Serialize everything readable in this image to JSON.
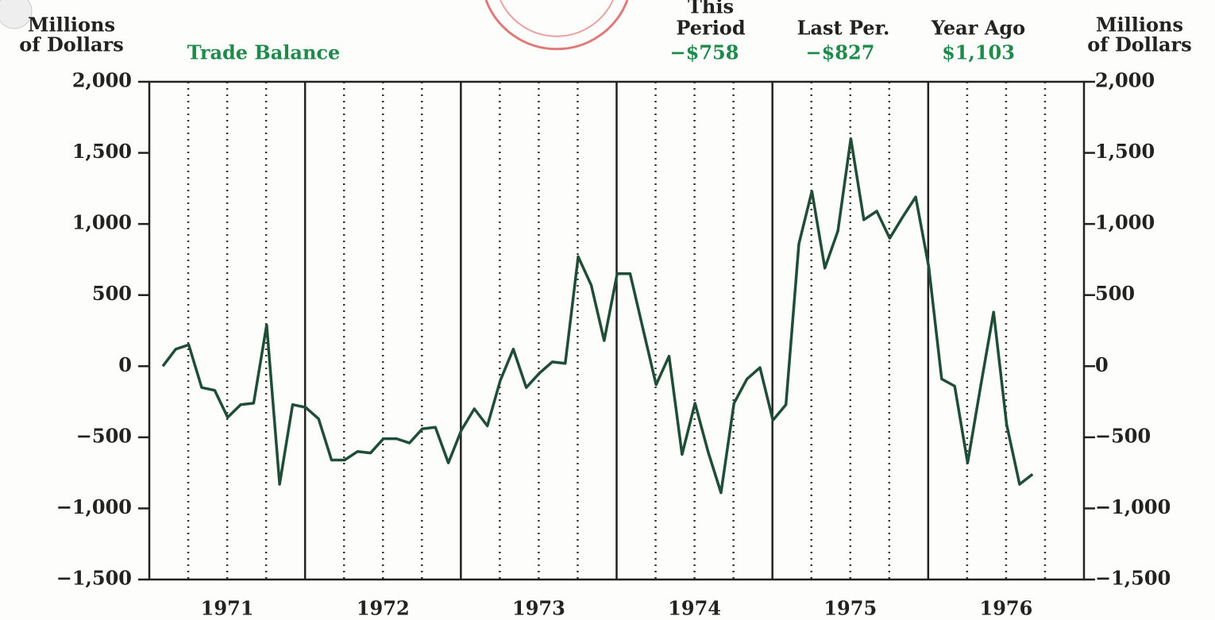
{
  "chart_data": {
    "type": "line",
    "title": "Trade Balance",
    "y_axis_label_left": [
      "Millions",
      "of Dollars"
    ],
    "y_axis_label_right": [
      "Millions",
      "of Dollars"
    ],
    "summary": {
      "headers": [
        [
          "This",
          "Period"
        ],
        [
          "Last Per."
        ],
        [
          "Year Ago"
        ]
      ],
      "values": [
        {
          "value": -758,
          "label": "−$758"
        },
        {
          "value": -827,
          "label": "−$827"
        },
        {
          "value": 1103,
          "label": "$1,103"
        }
      ]
    },
    "year_labels": [
      "1971",
      "1972",
      "1973",
      "1974",
      "1975",
      "1976"
    ],
    "categories": [
      null,
      null,
      null,
      null,
      null,
      null,
      null,
      null,
      null,
      null,
      null,
      null,
      null,
      null,
      null,
      null,
      null,
      null,
      null,
      null,
      null,
      null,
      null,
      null,
      null,
      null,
      null,
      null,
      null,
      null,
      null,
      null,
      null,
      null,
      null,
      null,
      null,
      null,
      null,
      null,
      null,
      null,
      null,
      null,
      null,
      null,
      null,
      null,
      null,
      null,
      null,
      null,
      null,
      null,
      null,
      null,
      null,
      null,
      null,
      null,
      null,
      null,
      null,
      null,
      null,
      null,
      null,
      null
    ],
    "series": [
      {
        "name": "Trade Balance",
        "color": "#1f4d38",
        "values": [
          0,
          120,
          150,
          -150,
          -170,
          -360,
          -270,
          -260,
          290,
          -830,
          -270,
          -290,
          -370,
          -660,
          -660,
          -600,
          -610,
          -510,
          -510,
          -540,
          -440,
          -430,
          -680,
          -450,
          -300,
          -420,
          -100,
          120,
          -150,
          -50,
          30,
          20,
          770,
          570,
          180,
          650,
          650,
          260,
          -130,
          70,
          -620,
          -260,
          -600,
          -890,
          -260,
          -90,
          -10,
          -380,
          -270,
          860,
          1230,
          690,
          950,
          1600,
          1030,
          1090,
          900,
          1050,
          1190,
          700,
          -90,
          -140,
          -680,
          -140,
          380,
          -410,
          -830,
          -760
        ]
      }
    ],
    "ylim": [
      -1500,
      2000
    ],
    "yticks": [
      {
        "value": -1500,
        "label": "−1,500"
      },
      {
        "value": -1000,
        "label": "−1,000"
      },
      {
        "value": -500,
        "label": "−500"
      },
      0,
      500,
      {
        "value": 1000,
        "label": "1,000"
      },
      {
        "value": 1500,
        "label": "1,500"
      },
      {
        "value": 2000,
        "label": "2,000"
      }
    ],
    "y2lim": [
      -1500,
      2000
    ],
    "y2ticks": [
      {
        "value": -1500,
        "label": "−1,500"
      },
      {
        "value": -1000,
        "label": "−1,000"
      },
      {
        "value": -500,
        "label": "−500"
      },
      0,
      500,
      {
        "value": 1000,
        "label": "1,000"
      },
      {
        "value": 1500,
        "label": "1,500"
      },
      {
        "value": 2000,
        "label": "2,000"
      }
    ],
    "grid": true
  }
}
